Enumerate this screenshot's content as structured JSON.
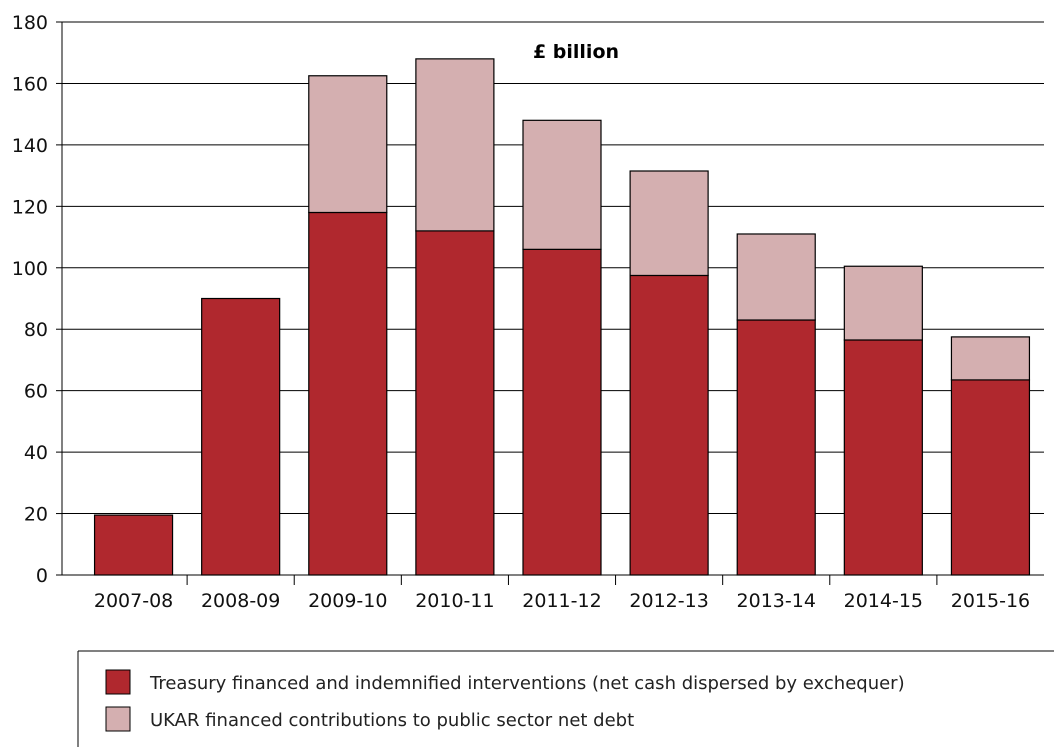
{
  "chart_data": {
    "type": "bar",
    "stacked": true,
    "title": "£ billion",
    "xlabel": "",
    "ylabel": "",
    "ylim": [
      0,
      180
    ],
    "yticks": [
      0,
      20,
      40,
      60,
      80,
      100,
      120,
      140,
      160,
      180
    ],
    "grid": true,
    "categories": [
      "2007-08",
      "2008-09",
      "2009-10",
      "2010-11",
      "2011-12",
      "2012-13",
      "2013-14",
      "2014-15",
      "2015-16"
    ],
    "series": [
      {
        "name": "Treasury financed and indemnified interventions (net cash dispersed by exchequer)",
        "color": "#b0282e",
        "values": [
          19.5,
          90,
          118,
          112,
          106,
          97.5,
          83,
          76.5,
          63.5
        ]
      },
      {
        "name": "UKAR financed contributions to public sector net debt",
        "color": "#d4afb0",
        "values": [
          0,
          0,
          44.5,
          56,
          42,
          34,
          28,
          24,
          14
        ]
      }
    ],
    "legend_position": "bottom"
  }
}
